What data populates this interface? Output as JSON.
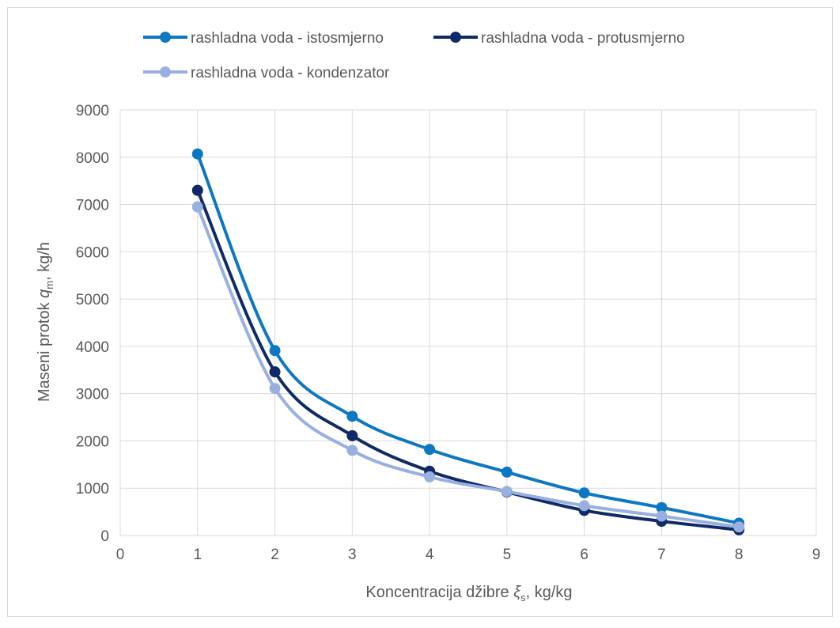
{
  "chart_data": {
    "type": "line",
    "smooth": true,
    "x": [
      1,
      2,
      3,
      4,
      5,
      6,
      7,
      8
    ],
    "series": [
      {
        "name": "rashladna voda - istosmjerno",
        "color": "#0e77c2",
        "values": [
          8070,
          3910,
          2520,
          1820,
          1340,
          900,
          590,
          260
        ]
      },
      {
        "name": "rashladna voda - protusmjerno",
        "color": "#0f2a66",
        "values": [
          7300,
          3460,
          2110,
          1360,
          920,
          530,
          300,
          120
        ]
      },
      {
        "name": "rashladna voda - kondenzator",
        "color": "#98afe0",
        "values": [
          6950,
          3110,
          1800,
          1240,
          930,
          630,
          410,
          180
        ]
      }
    ],
    "xlim": [
      0,
      9
    ],
    "ylim": [
      0,
      9000
    ],
    "xticks": [
      "0",
      "1",
      "2",
      "3",
      "4",
      "5",
      "6",
      "7",
      "8",
      "9"
    ],
    "yticks": [
      "0",
      "1000",
      "2000",
      "3000",
      "4000",
      "5000",
      "6000",
      "7000",
      "8000",
      "9000"
    ],
    "ylabel": {
      "prefix": "Maseni protok ",
      "symbol": "q",
      "sub": "m",
      "suffix": ", kg/h"
    },
    "xlabel": {
      "prefix": "Koncentracija džibre ",
      "symbol": "ξ",
      "sub": "s",
      "suffix": ", kg/kg"
    },
    "grid": true,
    "legend": "top"
  }
}
